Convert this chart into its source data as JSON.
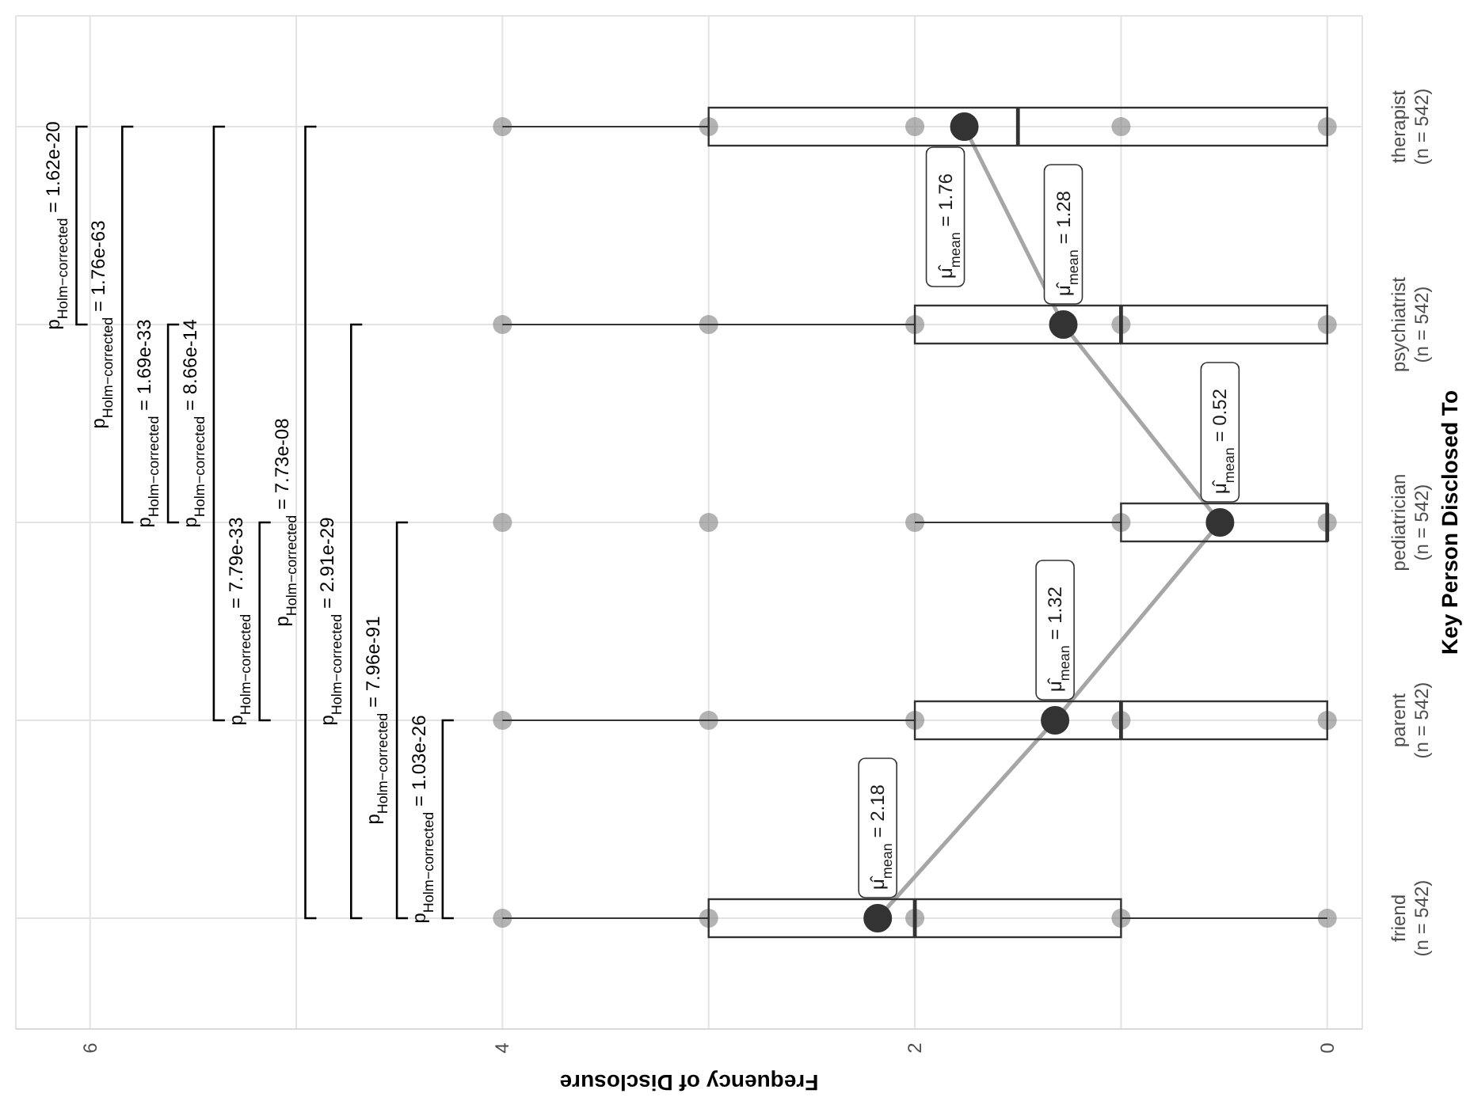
{
  "chart_data": {
    "type": "box",
    "orientation": "horizontal",
    "xlabel": "Frequency of Disclosure",
    "ylabel": "Key Person Disclosed To",
    "categories": [
      "therapist\n(n = 542)",
      "psychiatrist\n(n = 542)",
      "pediatrician\n(n = 542)",
      "parent\n(n = 542)",
      "friend\n(n = 542)"
    ],
    "boxes": [
      {
        "low": 0,
        "q1": 0,
        "median": 1.5,
        "q3": 3,
        "high": 4
      },
      {
        "low": 0,
        "q1": 0,
        "median": 1,
        "q3": 2,
        "high": 4
      },
      {
        "low": 0,
        "q1": 0,
        "median": 0,
        "q3": 1,
        "high": 2
      },
      {
        "low": 0,
        "q1": 0,
        "median": 1,
        "q3": 2,
        "high": 4
      },
      {
        "low": 0,
        "q1": 1,
        "median": 2,
        "q3": 3,
        "high": 4
      }
    ],
    "series": [
      {
        "type": "scatter",
        "color": "#808080",
        "x": [
          "friend\n(n = 542)",
          "friend\n(n = 542)",
          "friend\n(n = 542)",
          "friend\n(n = 542)",
          "friend\n(n = 542)",
          "parent\n(n = 542)",
          "parent\n(n = 542)",
          "parent\n(n = 542)",
          "parent\n(n = 542)",
          "parent\n(n = 542)",
          "pediatrician\n(n = 542)",
          "pediatrician\n(n = 542)",
          "pediatrician\n(n = 542)",
          "pediatrician\n(n = 542)",
          "pediatrician\n(n = 542)",
          "psychiatrist\n(n = 542)",
          "psychiatrist\n(n = 542)",
          "psychiatrist\n(n = 542)",
          "psychiatrist\n(n = 542)",
          "psychiatrist\n(n = 542)",
          "therapist\n(n = 542)",
          "therapist\n(n = 542)",
          "therapist\n(n = 542)",
          "therapist\n(n = 542)",
          "therapist\n(n = 542)"
        ],
        "values": [
          0,
          1,
          2,
          3,
          4,
          0,
          1,
          2,
          3,
          4,
          0,
          1,
          2,
          3,
          4,
          0,
          1,
          2,
          3,
          4,
          0,
          1,
          2,
          3,
          4
        ]
      },
      {
        "type": "line",
        "color": "#a6a6a6",
        "colors": [
          "#333333",
          "#333333",
          "#333333",
          "#333333",
          "#333333"
        ],
        "values": [
          1.76,
          1.28,
          0.52,
          1.32,
          2.18
        ],
        "value_labels": [
          "μ̂$_{mean}$ = 1.76",
          "μ̂$_{mean}$ = 1.28",
          "μ̂$_{mean}$ = 0.52",
          "μ̂$_{mean}$ = 1.32",
          "μ̂$_{mean}$ = 2.18"
        ]
      }
    ],
    "marker": "circle",
    "xlim": [
      6.36,
      -0.17
    ],
    "xticks": [
      0,
      {
        "value": 1,
        "label": null
      },
      2,
      {
        "value": 3,
        "label": null
      },
      4,
      {
        "value": 5,
        "label": null
      },
      6
    ],
    "grid": true,
    "annotations": [
      "p$_{Holm−corrected}$ = 1.03e-26",
      "p$_{Holm−corrected}$ = 7.96e-91",
      "p$_{Holm−corrected}$ = 2.91e-29",
      "p$_{Holm−corrected}$ = 7.73e-08",
      "p$_{Holm−corrected}$ = 7.79e-33",
      "p$_{Holm−corrected}$ = 8.66e-14",
      "p$_{Holm−corrected}$ = 1.69e-33",
      "p$_{Holm−corrected}$ = 1.76e-63",
      "p$_{Holm−corrected}$ = 1.62e-20"
    ]
  }
}
